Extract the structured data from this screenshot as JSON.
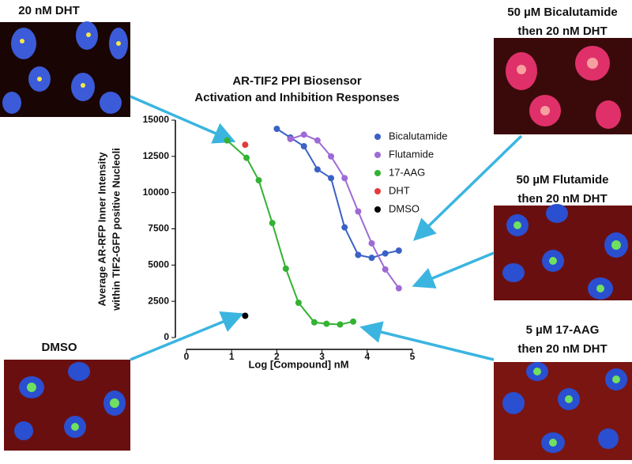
{
  "panels": [
    {
      "lines": [
        "20 nM DHT"
      ]
    },
    {
      "lines": [
        "50 µM Bicalutamide",
        "then 20 nM DHT"
      ]
    },
    {
      "lines": [
        "50 µM Flutamide",
        "then 20 nM DHT"
      ]
    },
    {
      "lines": [
        "5 µM 17-AAG",
        "then 20 nM DHT"
      ]
    },
    {
      "lines": [
        "DMSO"
      ]
    }
  ],
  "chart_data": {
    "type": "scatter",
    "title": [
      "AR-TIF2 PPI Biosensor",
      "Activation and Inhibition Responses"
    ],
    "x_label": "Log [Compound] nM",
    "y_label": [
      "Average AR-RFP Inner Intensity",
      "within TIF2-GFP positive Nucleoli"
    ],
    "xlim": [
      0,
      5
    ],
    "xticks": [
      0,
      1,
      2,
      3,
      4,
      5
    ],
    "ylim": [
      0,
      15000
    ],
    "yticks": [
      0,
      2500,
      5000,
      7500,
      10000,
      12500,
      15000
    ],
    "series": [
      {
        "name": "Bicalutamide",
        "color": "#3a62c4",
        "x": [
          2.0,
          2.3,
          2.6,
          2.9,
          3.2,
          3.5,
          3.8,
          4.1,
          4.4,
          4.7
        ],
        "values": [
          14400,
          13800,
          13200,
          11600,
          11000,
          7600,
          5700,
          5500,
          5800,
          6000
        ]
      },
      {
        "name": "Flutamide",
        "color": "#9e6ad6",
        "x": [
          2.3,
          2.6,
          2.9,
          3.2,
          3.5,
          3.8,
          4.1,
          4.4,
          4.7
        ],
        "values": [
          13700,
          14000,
          13600,
          12500,
          11000,
          8700,
          6500,
          4700,
          3400
        ]
      },
      {
        "name": "17-AAG",
        "color": "#33b233",
        "x": [
          0.9,
          1.33,
          1.6,
          1.9,
          2.2,
          2.48,
          2.83,
          3.1,
          3.4,
          3.69
        ],
        "values": [
          13600,
          12400,
          10850,
          7900,
          4750,
          2400,
          1050,
          950,
          900,
          1100
        ]
      },
      {
        "name": "DHT",
        "color": "#e53a3a",
        "x": [
          1.3
        ],
        "values": [
          13300
        ]
      },
      {
        "name": "DMSO",
        "color": "#000000",
        "x": [
          1.3
        ],
        "values": [
          1500
        ]
      }
    ]
  }
}
